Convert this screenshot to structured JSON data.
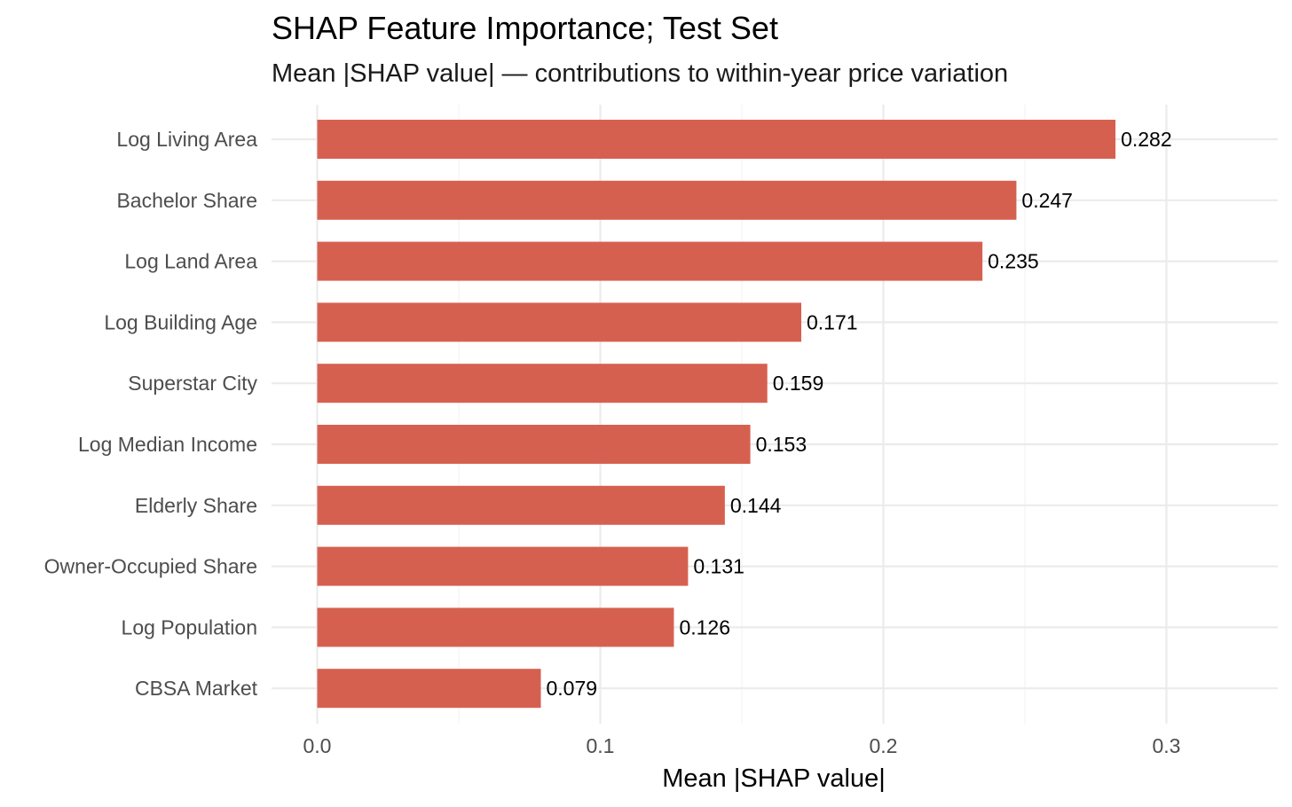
{
  "chart_data": {
    "type": "bar",
    "orientation": "horizontal",
    "title": "SHAP Feature Importance; Test Set",
    "subtitle": "Mean |SHAP value| — contributions to within-year price variation",
    "xlabel": "Mean |SHAP value|",
    "ylabel": "",
    "categories": [
      "Log Living Area",
      "Bachelor Share",
      "Log Land Area",
      "Log Building Age",
      "Superstar City",
      "Log Median Income",
      "Elderly Share",
      "Owner-Occupied Share",
      "Log Population",
      "CBSA Market"
    ],
    "values": [
      0.282,
      0.247,
      0.235,
      0.171,
      0.159,
      0.153,
      0.144,
      0.131,
      0.126,
      0.079
    ],
    "value_labels": [
      "0.282",
      "0.247",
      "0.235",
      "0.171",
      "0.159",
      "0.153",
      "0.144",
      "0.131",
      "0.126",
      "0.079"
    ],
    "xlim": [
      0,
      0.34
    ],
    "xticks": [
      0.0,
      0.1,
      0.2,
      0.3
    ],
    "xtick_labels": [
      "0.0",
      "0.1",
      "0.2",
      "0.3"
    ],
    "grid": true,
    "bar_color": "#d66050"
  }
}
